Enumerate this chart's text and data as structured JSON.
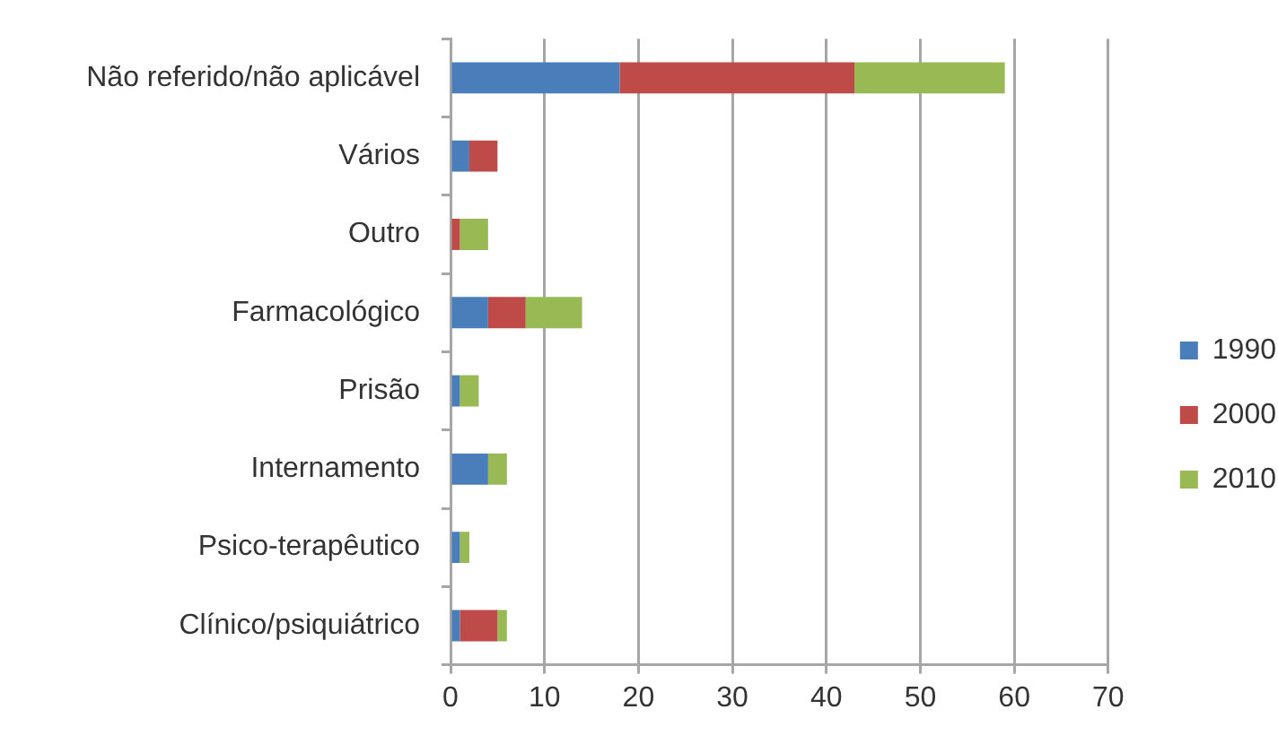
{
  "chart_data": {
    "type": "bar",
    "orientation": "horizontal",
    "stacked": true,
    "categories": [
      "Não referido/não aplicável",
      "Vários",
      "Outro",
      "Farmacológico",
      "Prisão",
      "Internamento",
      "Psico-terapêutico",
      "Clínico/psiquiátrico"
    ],
    "series": [
      {
        "name": "1990",
        "color": "#4a7ebb",
        "values": [
          18,
          2,
          0,
          4,
          1,
          4,
          1,
          1
        ]
      },
      {
        "name": "2000",
        "color": "#be4b48",
        "values": [
          25,
          3,
          1,
          4,
          0,
          0,
          0,
          4
        ]
      },
      {
        "name": "2010",
        "color": "#98b954",
        "values": [
          16,
          0,
          3,
          6,
          2,
          2,
          1,
          1
        ]
      }
    ],
    "xlim": [
      0,
      70
    ],
    "xticks": [
      0,
      10,
      20,
      30,
      40,
      50,
      60,
      70
    ],
    "grid": "x",
    "legend": "right"
  }
}
